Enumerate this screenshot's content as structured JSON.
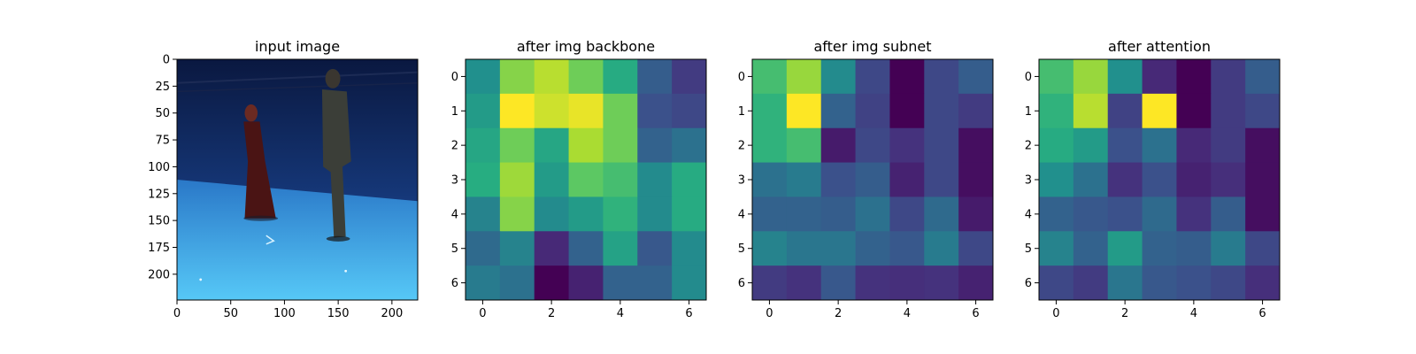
{
  "chart_data": [
    {
      "type": "image",
      "title": "input image",
      "image_size": [
        224,
        224
      ],
      "xticks": [
        0,
        50,
        100,
        150,
        200
      ],
      "yticks": [
        0,
        25,
        50,
        75,
        100,
        125,
        150,
        175,
        200
      ],
      "scene": {
        "description_colors": {
          "backdrop": "#0d1f5c",
          "floor": "#4fc3f5",
          "person_left_dress": "#5a1a1a",
          "person_right_clothes": "#3a3d36"
        }
      }
    },
    {
      "type": "heatmap",
      "title": "after img backbone",
      "xticks": [
        0,
        2,
        4,
        6
      ],
      "yticks": [
        0,
        1,
        2,
        3,
        4,
        5,
        6
      ],
      "colormap": "viridis",
      "values": [
        [
          0.5,
          0.82,
          0.9,
          0.78,
          0.62,
          0.3,
          0.18
        ],
        [
          0.55,
          1.0,
          0.93,
          0.97,
          0.78,
          0.25,
          0.22
        ],
        [
          0.6,
          0.78,
          0.6,
          0.88,
          0.78,
          0.32,
          0.38
        ],
        [
          0.63,
          0.86,
          0.55,
          0.75,
          0.7,
          0.48,
          0.62
        ],
        [
          0.45,
          0.82,
          0.48,
          0.55,
          0.65,
          0.48,
          0.62
        ],
        [
          0.35,
          0.45,
          0.12,
          0.32,
          0.58,
          0.28,
          0.48
        ],
        [
          0.42,
          0.38,
          0.0,
          0.1,
          0.32,
          0.32,
          0.48
        ]
      ]
    },
    {
      "type": "heatmap",
      "title": "after img subnet",
      "xticks": [
        0,
        2,
        4,
        6
      ],
      "yticks": [
        0,
        1,
        2,
        3,
        4,
        5,
        6
      ],
      "colormap": "viridis",
      "values": [
        [
          0.7,
          0.85,
          0.48,
          0.22,
          0.0,
          0.22,
          0.3
        ],
        [
          0.65,
          1.0,
          0.32,
          0.2,
          0.0,
          0.22,
          0.18
        ],
        [
          0.65,
          0.7,
          0.08,
          0.22,
          0.15,
          0.22,
          0.04
        ],
        [
          0.38,
          0.42,
          0.25,
          0.3,
          0.1,
          0.22,
          0.04
        ],
        [
          0.32,
          0.32,
          0.3,
          0.38,
          0.22,
          0.35,
          0.08
        ],
        [
          0.45,
          0.4,
          0.4,
          0.32,
          0.28,
          0.42,
          0.22
        ],
        [
          0.18,
          0.15,
          0.28,
          0.15,
          0.14,
          0.15,
          0.1
        ]
      ]
    },
    {
      "type": "heatmap",
      "title": "after attention",
      "xticks": [
        0,
        2,
        4,
        6
      ],
      "yticks": [
        0,
        1,
        2,
        3,
        4,
        5,
        6
      ],
      "colormap": "viridis",
      "values": [
        [
          0.7,
          0.85,
          0.5,
          0.12,
          0.0,
          0.18,
          0.3
        ],
        [
          0.65,
          0.9,
          0.2,
          1.0,
          0.0,
          0.18,
          0.22
        ],
        [
          0.62,
          0.55,
          0.25,
          0.38,
          0.12,
          0.18,
          0.04
        ],
        [
          0.5,
          0.38,
          0.15,
          0.25,
          0.1,
          0.14,
          0.04
        ],
        [
          0.32,
          0.28,
          0.25,
          0.35,
          0.15,
          0.3,
          0.04
        ],
        [
          0.45,
          0.32,
          0.55,
          0.32,
          0.3,
          0.42,
          0.22
        ],
        [
          0.22,
          0.18,
          0.4,
          0.28,
          0.25,
          0.22,
          0.14
        ]
      ]
    }
  ]
}
